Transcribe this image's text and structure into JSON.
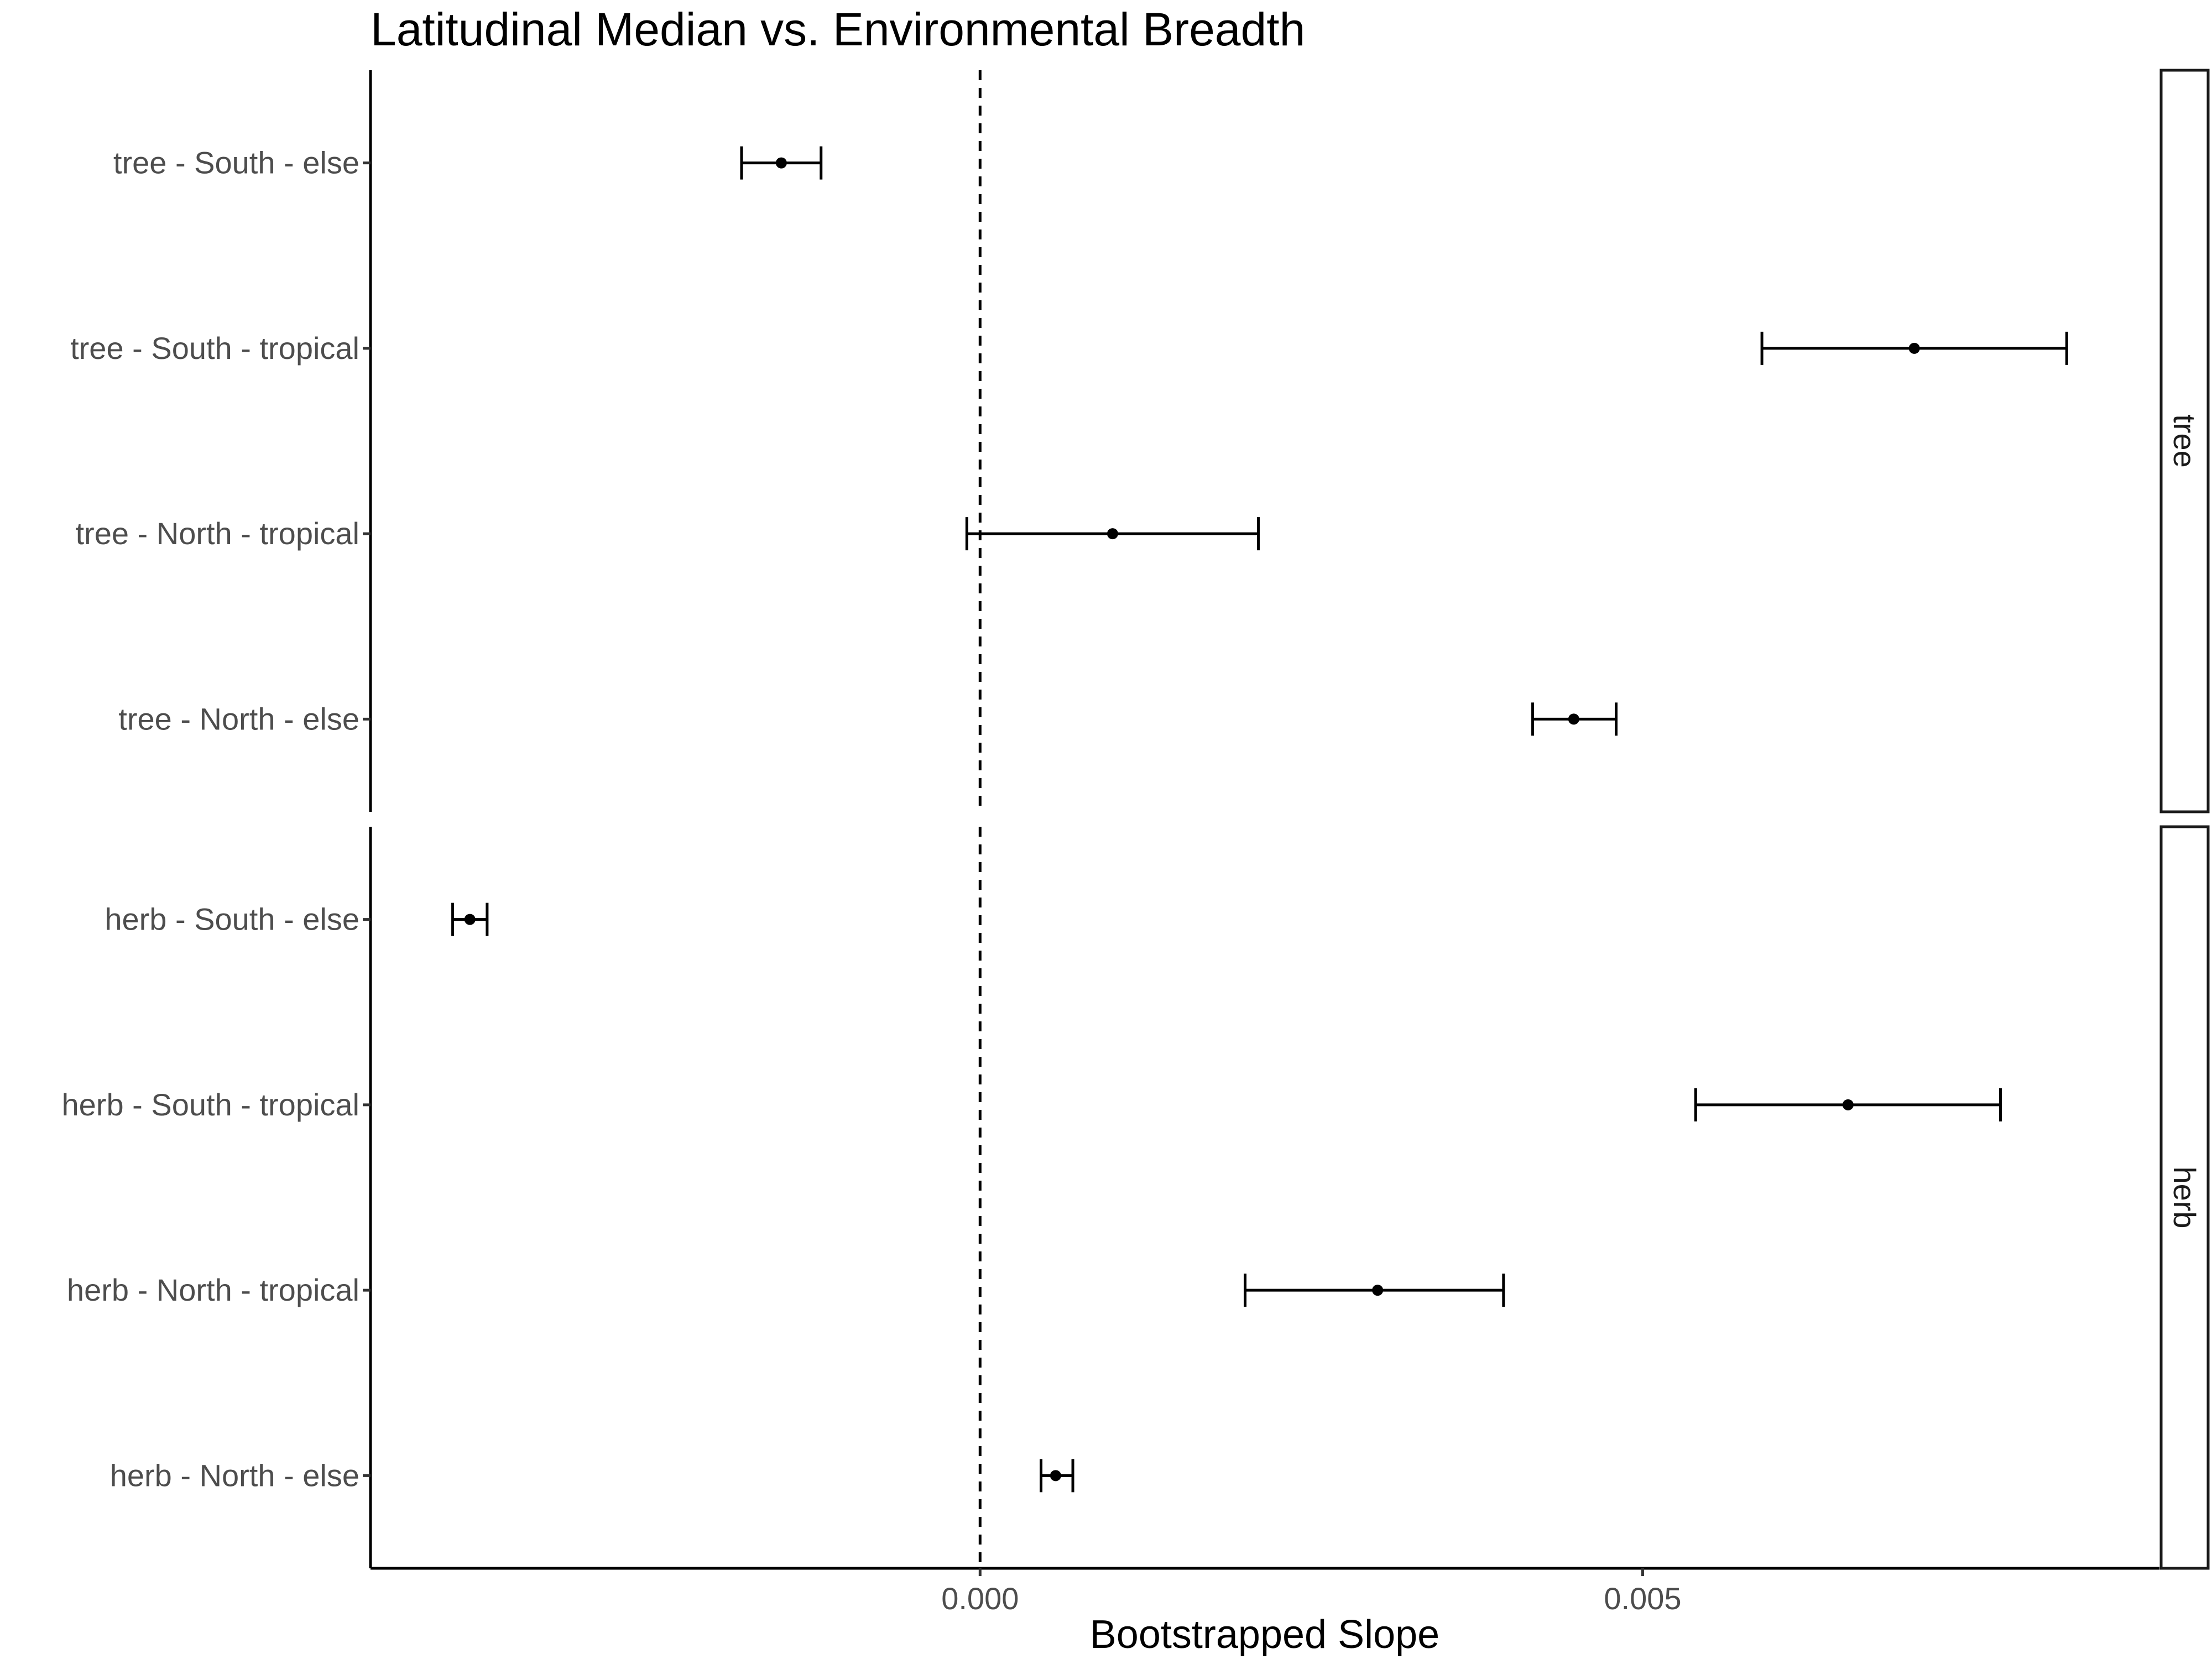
{
  "chart_data": {
    "type": "errorbar",
    "title": "Latitudinal Median vs. Environmental Breadth",
    "xlabel": "Bootstrapped Slope",
    "ylabel": "",
    "xlim": [
      -0.0046,
      0.0089
    ],
    "x_ticks": [
      0.0,
      0.005
    ],
    "x_tick_labels": [
      "0.000",
      "0.005"
    ],
    "reference_line": {
      "x": 0.0,
      "style": "dashed"
    },
    "grid": false,
    "colors": {
      "points": "#000000",
      "axis": "#000000",
      "text": "#4d4d4d"
    },
    "panels": [
      {
        "strip_label": "tree",
        "categories": [
          "tree - South - else",
          "tree - South - tropical",
          "tree - North - tropical",
          "tree - North - else"
        ],
        "estimates": [
          -0.0015,
          0.00705,
          0.001,
          0.00448
        ],
        "lower": [
          -0.0018,
          0.0059,
          -0.0001,
          0.00417
        ],
        "upper": [
          -0.0012,
          0.0082,
          0.0021,
          0.0048
        ]
      },
      {
        "strip_label": "herb",
        "categories": [
          "herb - South - else",
          "herb - South - tropical",
          "herb - North - tropical",
          "herb - North - else"
        ],
        "estimates": [
          -0.00385,
          0.00655,
          0.003,
          0.00057
        ],
        "lower": [
          -0.00398,
          0.0054,
          0.002,
          0.00046
        ],
        "upper": [
          -0.00372,
          0.0077,
          0.00395,
          0.0007
        ]
      }
    ]
  }
}
